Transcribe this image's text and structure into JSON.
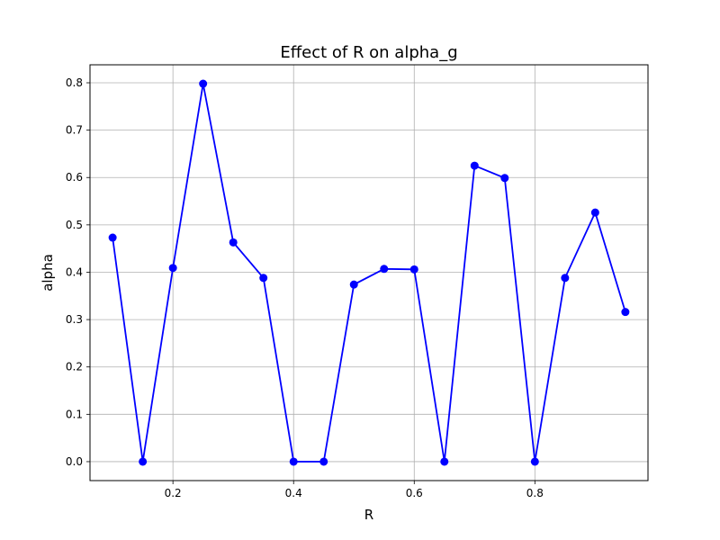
{
  "chart_data": {
    "type": "line",
    "title": "Effect of R on alpha_g",
    "xlabel": "R",
    "ylabel": "alpha",
    "x": [
      0.1,
      0.15,
      0.2,
      0.25,
      0.3,
      0.35,
      0.4,
      0.45,
      0.5,
      0.55,
      0.6,
      0.65,
      0.7,
      0.75,
      0.8,
      0.85,
      0.9,
      0.95
    ],
    "y": [
      0.473,
      0.0,
      0.409,
      0.798,
      0.463,
      0.388,
      0.0,
      0.0,
      0.374,
      0.407,
      0.406,
      0.0,
      0.625,
      0.599,
      0.0,
      0.388,
      0.526,
      0.316
    ],
    "xlim": [
      0.0625,
      0.9875
    ],
    "ylim": [
      -0.04,
      0.838
    ],
    "xticks": [
      0.2,
      0.4,
      0.6,
      0.8
    ],
    "xtick_labels": [
      "0.2",
      "0.4",
      "0.6",
      "0.8"
    ],
    "yticks": [
      0.0,
      0.1,
      0.2,
      0.3,
      0.4,
      0.5,
      0.6,
      0.7,
      0.8
    ],
    "ytick_labels": [
      "0.0",
      "0.1",
      "0.2",
      "0.3",
      "0.4",
      "0.5",
      "0.6",
      "0.7",
      "0.8"
    ],
    "grid": true,
    "line_color": "#0000ff",
    "marker": "circle"
  }
}
